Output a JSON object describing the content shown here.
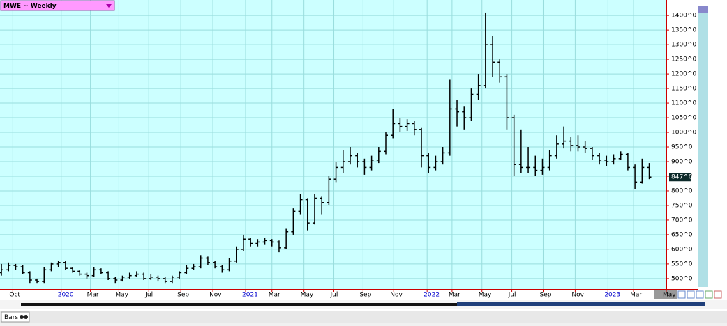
{
  "chart_data": {
    "type": "ohlc",
    "title": "MWE ~ Weekly",
    "color": "#000000",
    "grid": true,
    "open": [
      520,
      530,
      545,
      540,
      520,
      495,
      490,
      530,
      550,
      555,
      535,
      525,
      515,
      510,
      530,
      520,
      500,
      495,
      505,
      510,
      515,
      500,
      505,
      500,
      490,
      505,
      520,
      535,
      540,
      570,
      555,
      540,
      530,
      560,
      600,
      635,
      620,
      625,
      630,
      625,
      605,
      660,
      730,
      770,
      690,
      775,
      760,
      840,
      880,
      900,
      920,
      900,
      880,
      905,
      935,
      990,
      1030,
      1020,
      1030,
      1010,
      920,
      880,
      900,
      930,
      1080,
      1070,
      1050,
      1130,
      1160,
      1300,
      1240,
      1190,
      1050,
      890,
      880,
      880,
      870,
      880,
      920,
      960,
      970,
      955,
      950,
      945,
      920,
      905,
      900,
      910,
      925,
      880,
      830,
      880
    ],
    "high": [
      550,
      555,
      550,
      545,
      525,
      500,
      540,
      555,
      560,
      560,
      540,
      530,
      520,
      540,
      535,
      525,
      505,
      510,
      520,
      525,
      520,
      515,
      510,
      505,
      510,
      525,
      545,
      550,
      580,
      575,
      560,
      545,
      570,
      610,
      650,
      640,
      635,
      640,
      635,
      630,
      670,
      740,
      790,
      775,
      790,
      780,
      850,
      900,
      940,
      950,
      930,
      910,
      920,
      950,
      1000,
      1080,
      1050,
      1045,
      1040,
      1015,
      930,
      920,
      950,
      1180,
      1110,
      1090,
      1150,
      1200,
      1410,
      1330,
      1250,
      1200,
      1060,
      1010,
      950,
      920,
      910,
      940,
      990,
      1020,
      985,
      990,
      970,
      950,
      930,
      920,
      925,
      935,
      930,
      890,
      910,
      895
    ],
    "low": [
      510,
      525,
      530,
      515,
      485,
      485,
      485,
      525,
      540,
      530,
      520,
      510,
      500,
      505,
      515,
      495,
      485,
      490,
      500,
      505,
      495,
      495,
      490,
      485,
      485,
      500,
      515,
      530,
      535,
      545,
      535,
      520,
      525,
      555,
      595,
      610,
      610,
      615,
      610,
      590,
      600,
      650,
      720,
      665,
      685,
      720,
      750,
      830,
      860,
      890,
      880,
      855,
      870,
      895,
      925,
      980,
      1000,
      1005,
      990,
      880,
      860,
      870,
      890,
      920,
      1020,
      1010,
      1040,
      1110,
      1150,
      1190,
      1170,
      1010,
      850,
      860,
      860,
      850,
      855,
      870,
      910,
      945,
      935,
      935,
      930,
      905,
      890,
      885,
      890,
      905,
      870,
      805,
      825,
      840
    ],
    "close": [
      530,
      545,
      540,
      520,
      495,
      490,
      530,
      550,
      555,
      535,
      525,
      515,
      510,
      530,
      520,
      500,
      495,
      505,
      510,
      515,
      500,
      505,
      500,
      490,
      505,
      520,
      535,
      540,
      570,
      555,
      540,
      530,
      560,
      600,
      635,
      620,
      625,
      630,
      625,
      605,
      660,
      730,
      770,
      690,
      775,
      760,
      840,
      880,
      900,
      920,
      900,
      880,
      905,
      935,
      990,
      1030,
      1020,
      1030,
      1010,
      920,
      880,
      900,
      930,
      1080,
      1070,
      1050,
      1130,
      1160,
      1300,
      1240,
      1190,
      1050,
      890,
      880,
      880,
      870,
      880,
      920,
      960,
      970,
      955,
      950,
      945,
      920,
      905,
      900,
      910,
      925,
      880,
      830,
      880,
      847
    ],
    "xlim": [
      -0.2,
      93.4
    ],
    "xticks": [
      {
        "value": 1.6,
        "label": "Oct"
      },
      {
        "value": 8.4,
        "label": "2020"
      },
      {
        "value": 12.5,
        "label": "Mar"
      },
      {
        "value": 16.5,
        "label": "May"
      },
      {
        "value": 20.7,
        "label": "Jul"
      },
      {
        "value": 25.2,
        "label": "Sep"
      },
      {
        "value": 29.7,
        "label": "Nov"
      },
      {
        "value": 34.3,
        "label": "2021"
      },
      {
        "value": 38.0,
        "label": "Mar"
      },
      {
        "value": 42.5,
        "label": "May"
      },
      {
        "value": 46.7,
        "label": "Jul"
      },
      {
        "value": 50.8,
        "label": "Sep"
      },
      {
        "value": 55.1,
        "label": "Nov"
      },
      {
        "value": 59.8,
        "label": "2022"
      },
      {
        "value": 63.3,
        "label": "Mar"
      },
      {
        "value": 67.5,
        "label": "May"
      },
      {
        "value": 71.7,
        "label": "Jul"
      },
      {
        "value": 76.1,
        "label": "Sep"
      },
      {
        "value": 80.6,
        "label": "Nov"
      },
      {
        "value": 85.2,
        "label": "2023"
      },
      {
        "value": 88.8,
        "label": "Mar"
      },
      {
        "value": 93.4,
        "label": "May"
      }
    ],
    "ylim": [
      464,
      1448
    ],
    "yticks": [
      {
        "value": 500,
        "label": "500^0"
      },
      {
        "value": 550,
        "label": "550^0"
      },
      {
        "value": 600,
        "label": "600^0"
      },
      {
        "value": 650,
        "label": "650^0"
      },
      {
        "value": 700,
        "label": "700^0"
      },
      {
        "value": 750,
        "label": "750^0"
      },
      {
        "value": 800,
        "label": "800^0"
      },
      {
        "value": 850,
        "label": "850^0"
      },
      {
        "value": 900,
        "label": "900^0"
      },
      {
        "value": 950,
        "label": "950^0"
      },
      {
        "value": 1000,
        "label": "1000^0"
      },
      {
        "value": 1050,
        "label": "1050^0"
      },
      {
        "value": 1100,
        "label": "1100^0"
      },
      {
        "value": 1150,
        "label": "1150^0"
      },
      {
        "value": 1200,
        "label": "1200^0"
      },
      {
        "value": 1250,
        "label": "1250^0"
      },
      {
        "value": 1300,
        "label": "1300^0"
      },
      {
        "value": 1350,
        "label": "1350^0"
      },
      {
        "value": 1400,
        "label": "1400^0"
      }
    ],
    "last_price": {
      "value": 847,
      "label": "847^0"
    }
  },
  "ui": {
    "tab": "Bars"
  }
}
